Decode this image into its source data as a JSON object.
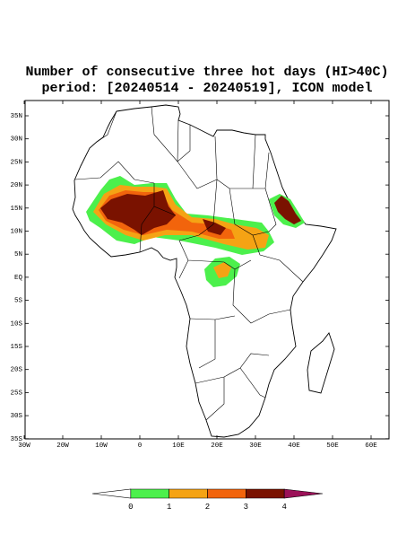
{
  "title": [
    "Number of consecutive three hot days (HI>40C)",
    "period: [20240514 - 20240519], ICON model"
  ],
  "lat_labels": [
    "35N",
    "30N",
    "25N",
    "20N",
    "15N",
    "10N",
    "5N",
    "EQ",
    "5S",
    "10S",
    "15S",
    "20S",
    "25S",
    "30S",
    "35S"
  ],
  "lon_labels": [
    "30W",
    "20W",
    "10W",
    "0",
    "10E",
    "20E",
    "30E",
    "40E",
    "50E",
    "60E"
  ],
  "colorbar": {
    "labels": [
      "0",
      "1",
      "2",
      "3",
      "4"
    ],
    "colors": [
      "#ffffff",
      "#4cf04c",
      "#f5a314",
      "#f2640c",
      "#7a1200",
      "#9b1158"
    ]
  }
}
